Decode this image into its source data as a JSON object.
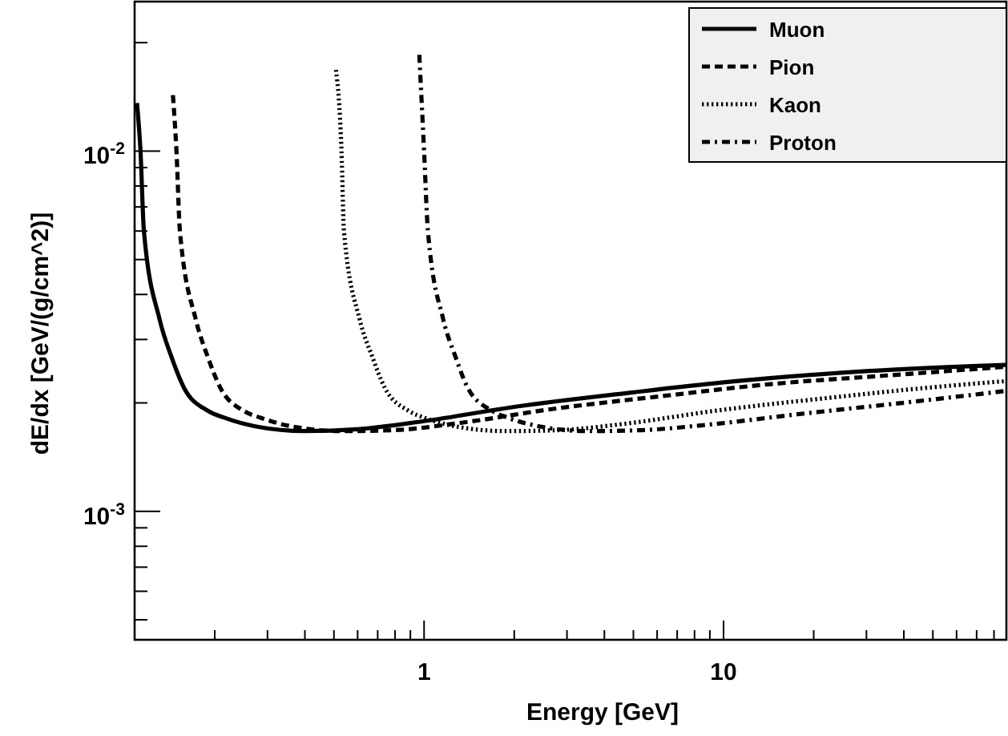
{
  "chart_data": {
    "type": "line",
    "xlabel": "Energy [GeV]",
    "ylabel": "dE/dx [GeV/(g/cm^2)]",
    "log": "xy",
    "grid": false,
    "legend": "top right",
    "marker": "none",
    "xlim": [
      0.108,
      88
    ],
    "ylim": [
      0.00044,
      0.026
    ],
    "xticks": [
      {
        "value": 0.2,
        "label": null
      },
      {
        "value": 0.3,
        "label": null
      },
      {
        "value": 0.4,
        "label": null
      },
      {
        "value": 0.5,
        "label": null
      },
      {
        "value": 0.6,
        "label": null
      },
      {
        "value": 0.7,
        "label": null
      },
      {
        "value": 0.8,
        "label": null
      },
      {
        "value": 0.9,
        "label": null
      },
      1,
      {
        "value": 2,
        "label": null
      },
      {
        "value": 3,
        "label": null
      },
      {
        "value": 4,
        "label": null
      },
      {
        "value": 5,
        "label": null
      },
      {
        "value": 6,
        "label": null
      },
      {
        "value": 7,
        "label": null
      },
      {
        "value": 8,
        "label": null
      },
      {
        "value": 9,
        "label": null
      },
      10,
      {
        "value": 20,
        "label": null
      },
      {
        "value": 30,
        "label": null
      },
      {
        "value": 40,
        "label": null
      },
      {
        "value": 50,
        "label": null
      },
      {
        "value": 60,
        "label": null
      },
      {
        "value": 70,
        "label": null
      },
      {
        "value": 80,
        "label": null
      }
    ],
    "yticks": [
      {
        "value": 0.0005,
        "label": null
      },
      {
        "value": 0.0006,
        "label": null
      },
      {
        "value": 0.0007,
        "label": null
      },
      {
        "value": 0.0008,
        "label": null
      },
      {
        "value": 0.0009,
        "label": null
      },
      {
        "value": 0.001,
        "label": "10$^{-3}$"
      },
      {
        "value": 0.002,
        "label": null
      },
      {
        "value": 0.003,
        "label": null
      },
      {
        "value": 0.004,
        "label": null
      },
      {
        "value": 0.005,
        "label": null
      },
      {
        "value": 0.006,
        "label": null
      },
      {
        "value": 0.007,
        "label": null
      },
      {
        "value": 0.008,
        "label": null
      },
      {
        "value": 0.009,
        "label": null
      },
      {
        "value": 0.01,
        "label": "10$^{-2}$"
      },
      {
        "value": 0.02,
        "label": null
      }
    ],
    "series": [
      {
        "name": "Muon",
        "color": "#000000",
        "line_style": "solid",
        "x": [
          0.11,
          0.113,
          0.116,
          0.131,
          0.143,
          0.158,
          0.19,
          0.215,
          0.275,
          0.4,
          0.6,
          1,
          2,
          5,
          10,
          30,
          88
        ],
        "values": [
          0.0136,
          0.01,
          0.006,
          0.0034,
          0.0027,
          0.0022,
          0.0019,
          0.00182,
          0.00172,
          0.00167,
          0.00169,
          0.00178,
          0.00195,
          0.00214,
          0.00228,
          0.00245,
          0.00255
        ]
      },
      {
        "name": "Pion",
        "color": "#000000",
        "line_style": "dashed",
        "x": [
          0.145,
          0.149,
          0.153,
          0.173,
          0.189,
          0.209,
          0.25,
          0.284,
          0.363,
          0.53,
          0.79,
          1.32,
          2.64,
          6.6,
          13.2,
          39.6,
          88
        ],
        "values": [
          0.0143,
          0.01,
          0.006,
          0.0034,
          0.0027,
          0.0022,
          0.0019,
          0.00182,
          0.00172,
          0.00167,
          0.00168,
          0.00176,
          0.00192,
          0.0021,
          0.00224,
          0.0024,
          0.00252
        ]
      },
      {
        "name": "Kaon",
        "color": "#000000",
        "line_style": "dotted",
        "x": [
          0.508,
          0.53,
          0.54,
          0.61,
          0.67,
          0.74,
          0.89,
          1.0,
          1.28,
          1.87,
          2.8,
          4.67,
          9.3,
          23,
          47,
          88
        ],
        "values": [
          0.0168,
          0.01,
          0.006,
          0.0034,
          0.0027,
          0.0022,
          0.0019,
          0.00182,
          0.00172,
          0.00167,
          0.00168,
          0.00175,
          0.0019,
          0.00207,
          0.0022,
          0.0023
        ]
      },
      {
        "name": "Proton",
        "color": "#000000",
        "line_style": "dashdot",
        "x": [
          0.964,
          1.0,
          1.03,
          1.16,
          1.27,
          1.4,
          1.69,
          1.9,
          2.44,
          3.55,
          5.3,
          8.87,
          17.7,
          44,
          88
        ],
        "values": [
          0.0185,
          0.01,
          0.006,
          0.0034,
          0.0027,
          0.0022,
          0.0019,
          0.00182,
          0.00172,
          0.00167,
          0.00168,
          0.00174,
          0.00186,
          0.00202,
          0.00216
        ]
      }
    ]
  }
}
